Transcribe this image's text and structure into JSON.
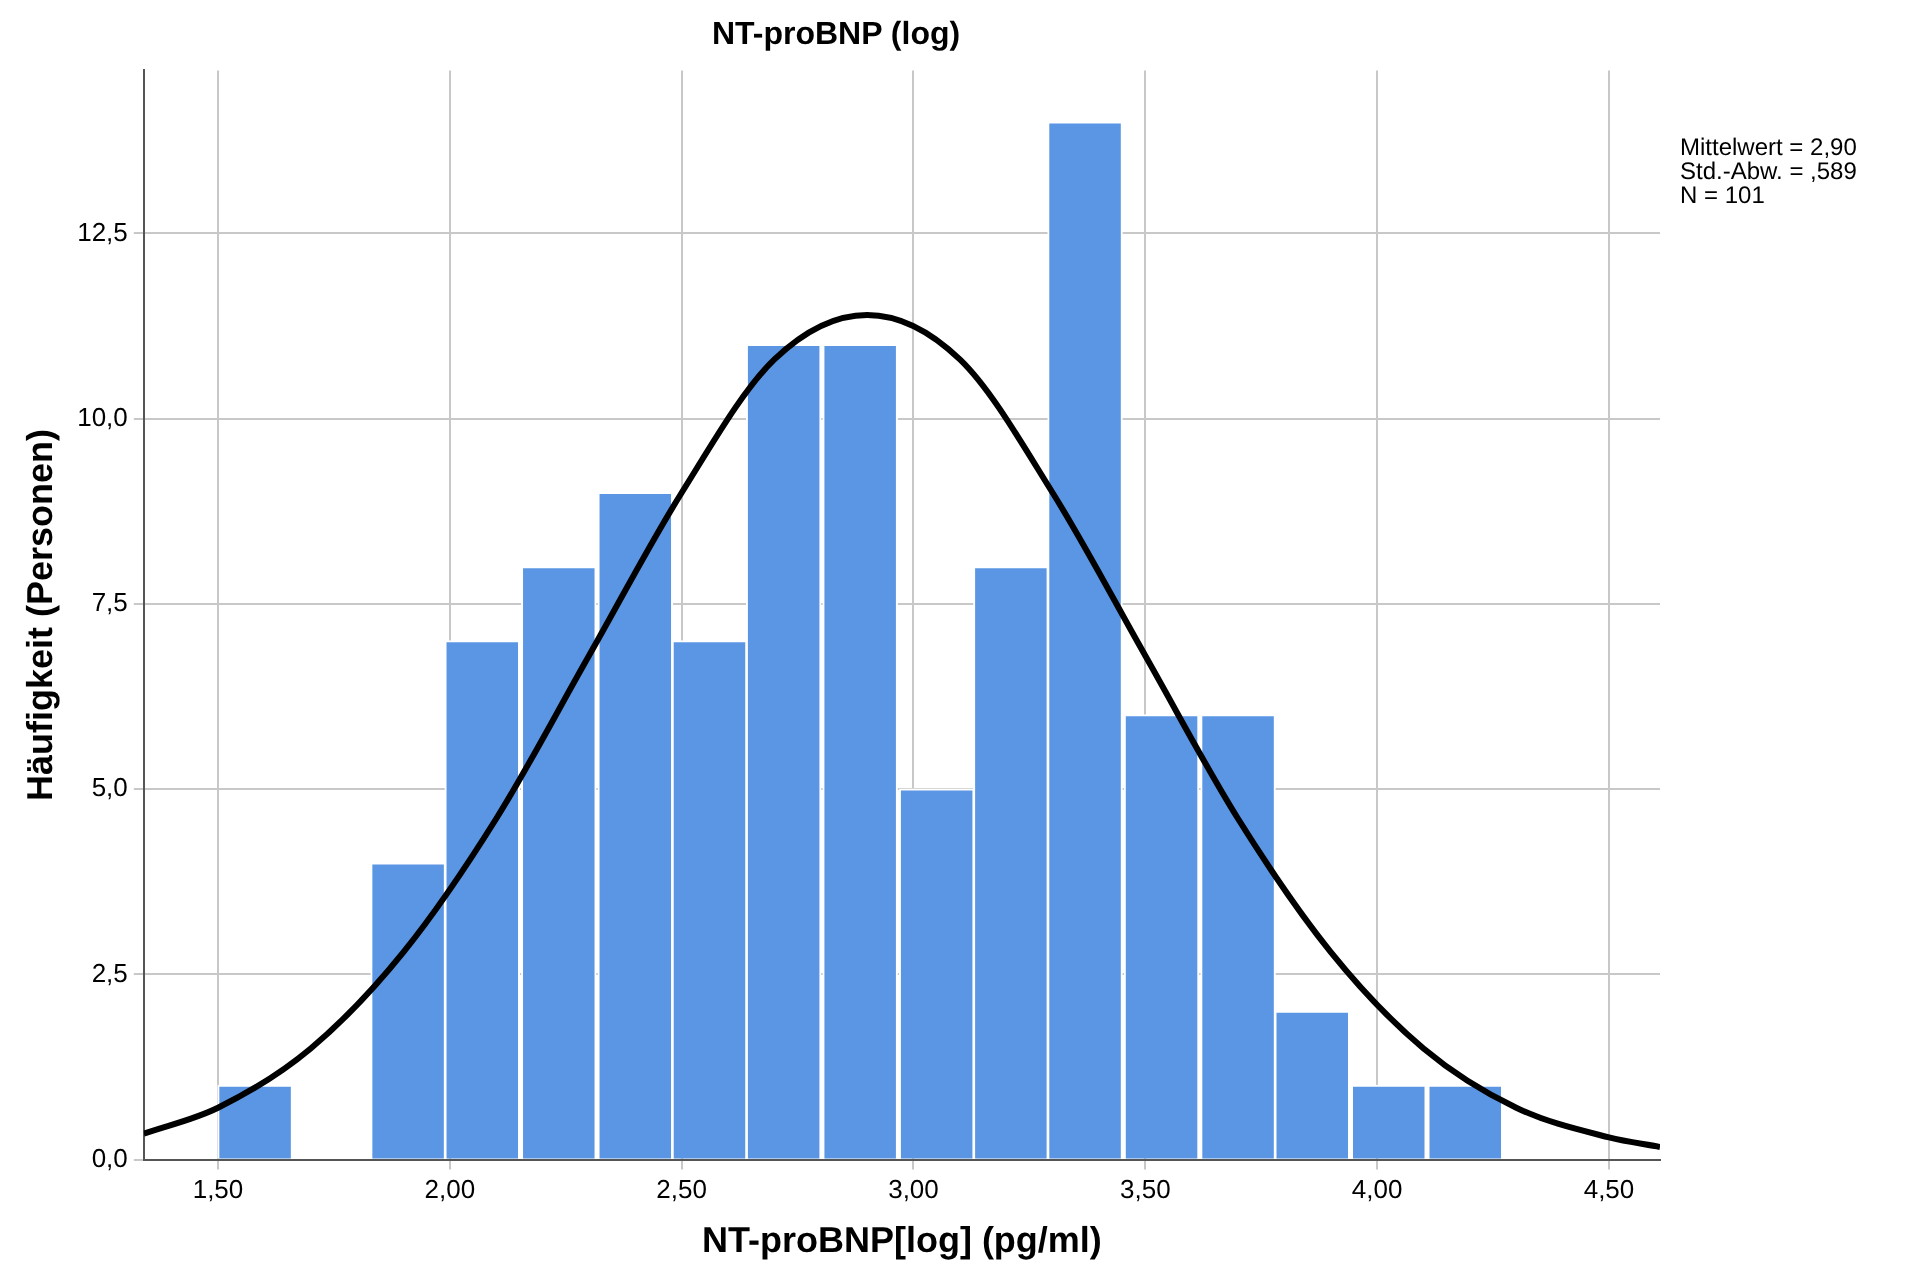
{
  "chart_data": {
    "type": "histogram",
    "title": "NT-proBNP (log)",
    "xlabel": "NT-proBNP[log] (pg/ml)",
    "ylabel": "Häufigkeit (Personen)",
    "annotations": [
      "Mittelwert = 2,90",
      "Std.-Abw. = ,589",
      "N = 101"
    ],
    "bins": [
      1.5,
      1.66,
      1.83,
      1.99,
      2.15,
      2.32,
      2.48,
      2.64,
      2.8,
      2.97,
      3.13,
      3.29,
      3.45,
      3.62,
      3.78,
      3.94,
      4.11,
      4.27
    ],
    "values": [
      1,
      0,
      4,
      7,
      8,
      9,
      7,
      11,
      11,
      5,
      8,
      14,
      6,
      6,
      2,
      1,
      1
    ],
    "color": "#5b96e4",
    "series": [
      {
        "type": "line",
        "color": "#000000",
        "x": [
          1.34,
          1.5,
          1.7,
          1.9,
          2.1,
          2.3,
          2.5,
          2.7,
          2.9,
          3.1,
          3.3,
          3.5,
          3.7,
          3.9,
          4.1,
          4.3,
          4.5,
          4.61
        ],
        "values": [
          0.35,
          0.7,
          1.5,
          2.8,
          4.6,
          6.8,
          9.0,
          10.8,
          11.4,
          10.8,
          9.0,
          6.8,
          4.6,
          2.8,
          1.5,
          0.7,
          0.3,
          0.17
        ]
      }
    ],
    "xlim": [
      1.34,
      4.61
    ],
    "xticks": [
      {
        "value": 1.5,
        "label": "1,50"
      },
      {
        "value": 2,
        "label": "2,00"
      },
      {
        "value": 2.5,
        "label": "2,50"
      },
      {
        "value": 3,
        "label": "3,00"
      },
      {
        "value": 3.5,
        "label": "3,50"
      },
      {
        "value": 4,
        "label": "4,00"
      },
      {
        "value": 4.5,
        "label": "4,50"
      }
    ],
    "ylim": [
      0,
      14.7
    ],
    "yticks": [
      {
        "value": 0,
        "label": "0,0"
      },
      {
        "value": 2.5,
        "label": "2,5"
      },
      {
        "value": 5,
        "label": "5,0"
      },
      {
        "value": 7.5,
        "label": "7,5"
      },
      {
        "value": 10,
        "label": "10,0"
      },
      {
        "value": 12.5,
        "label": "12,5"
      }
    ],
    "grid": true,
    "legend": false
  }
}
